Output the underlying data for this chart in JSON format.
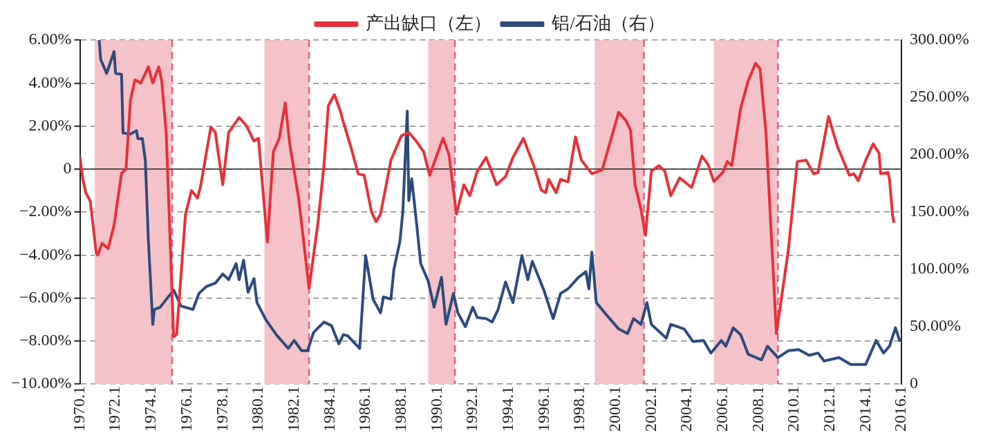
{
  "chart_data": {
    "type": "line",
    "legend": "top",
    "grid": "y",
    "line_style": "solid",
    "marker": "none",
    "xlim": [
      "1970-01",
      "2016-01"
    ],
    "xticks": [
      {
        "value": "1970-01",
        "label": "1970.1"
      },
      {
        "value": "1972-01",
        "label": "1972.1"
      },
      {
        "value": "1974-01",
        "label": "1974.1"
      },
      {
        "value": "1976-01",
        "label": "1976.1"
      },
      {
        "value": "1978-01",
        "label": "1978.1"
      },
      {
        "value": "1980-01",
        "label": "1980.1"
      },
      {
        "value": "1982-01",
        "label": "1982.1"
      },
      {
        "value": "1984-01",
        "label": "1984.1"
      },
      {
        "value": "1986-01",
        "label": "1986.1"
      },
      {
        "value": "1988-01",
        "label": "1988.1"
      },
      {
        "value": "1990-01",
        "label": "1990.1"
      },
      {
        "value": "1992-01",
        "label": "1992.1"
      },
      {
        "value": "1994-01",
        "label": "1994.1"
      },
      {
        "value": "1996-01",
        "label": "1996.1"
      },
      {
        "value": "1998-01",
        "label": "1998.1"
      },
      {
        "value": "2000-01",
        "label": "2000.1"
      },
      {
        "value": "2002-01",
        "label": "2002.1"
      },
      {
        "value": "2004-01",
        "label": "2004.1"
      },
      {
        "value": "2006-01",
        "label": "2006.1"
      },
      {
        "value": "2008-01",
        "label": "2008.1"
      },
      {
        "value": "2010-01",
        "label": "2010.1"
      },
      {
        "value": "2012-01",
        "label": "2012.1"
      },
      {
        "value": "2014-01",
        "label": "2014.1"
      },
      {
        "value": "2016-01",
        "label": "2016.1"
      }
    ],
    "ylim": [
      -10,
      6
    ],
    "yticks": [
      {
        "value": 6,
        "label": "6.00%"
      },
      {
        "value": 4,
        "label": "4.00%"
      },
      {
        "value": 2,
        "label": "2.00%"
      },
      0,
      {
        "value": -2,
        "label": "−2.00%"
      },
      {
        "value": -4,
        "label": "−4.00%"
      },
      {
        "value": -6,
        "label": "−6.00%"
      },
      {
        "value": -8,
        "label": "−8.00%"
      },
      {
        "value": -10,
        "label": "−10.00%"
      }
    ],
    "y2lim": [
      0,
      300
    ],
    "y2ticks": [
      {
        "value": 300,
        "label": "300.00%"
      },
      {
        "value": 250,
        "label": "250.00%"
      },
      {
        "value": 200,
        "label": "200.00%"
      },
      {
        "value": 150,
        "label": "150.00%"
      },
      {
        "value": 100,
        "label": "100.00%"
      },
      {
        "value": 50,
        "label": "50.00%"
      },
      0
    ],
    "bands": [
      {
        "axis": "x",
        "from": "1970-11",
        "to": "1975-03",
        "color": "#f4c2c8"
      },
      {
        "axis": "x",
        "from": "1980-05",
        "to": "1982-11",
        "color": "#f4c2c8"
      },
      {
        "axis": "x",
        "from": "1989-07",
        "to": "1991-01",
        "color": "#f4c2c8"
      },
      {
        "axis": "x",
        "from": "1998-11",
        "to": "2001-08",
        "color": "#f4c2c8"
      },
      {
        "axis": "x",
        "from": "2005-07",
        "to": "2009-02",
        "color": "#f4c2c8"
      }
    ],
    "ref_lines": [
      {
        "axis": "x",
        "value": "1975-03",
        "color": "#e0607e",
        "line_style": "dashed"
      },
      {
        "axis": "x",
        "value": "1982-11",
        "color": "#e0607e",
        "line_style": "dashed"
      },
      {
        "axis": "x",
        "value": "1991-01",
        "color": "#e0607e",
        "line_style": "dashed"
      },
      {
        "axis": "x",
        "value": "2001-08",
        "color": "#e0607e",
        "line_style": "dashed"
      },
      {
        "axis": "x",
        "value": "2009-02",
        "color": "#e0607e",
        "line_style": "dashed"
      },
      {
        "axis": "y",
        "value": 0,
        "color": "#222222",
        "line_style": "solid"
      }
    ],
    "series": [
      {
        "name": "产出缺口（左）",
        "color": "#e8303a",
        "axis": "y",
        "x": [
          "1970-01",
          "1970-03",
          "1970-05",
          "1970-08",
          "1970-12",
          "1971-01",
          "1971-04",
          "1971-08",
          "1971-12",
          "1972-05",
          "1972-08",
          "1972-11",
          "1973-02",
          "1973-06",
          "1973-11",
          "1974-02",
          "1974-06",
          "1974-08",
          "1974-11",
          "1975-04",
          "1975-06",
          "1975-12",
          "1976-04",
          "1976-08",
          "1976-10",
          "1977-05",
          "1977-08",
          "1978-01",
          "1978-05",
          "1978-12",
          "1979-05",
          "1979-10",
          "1980-01",
          "1980-07",
          "1980-11",
          "1981-03",
          "1981-07",
          "1981-10",
          "1982-04",
          "1982-11",
          "1983-05",
          "1983-09",
          "1983-12",
          "1984-04",
          "1984-08",
          "1984-10",
          "1985-03",
          "1985-08",
          "1985-12",
          "1986-05",
          "1986-08",
          "1986-11",
          "1987-06",
          "1988-01",
          "1988-06",
          "1988-11",
          "1989-04",
          "1989-08",
          "1990-05",
          "1990-09",
          "1991-02",
          "1991-07",
          "1991-11",
          "1992-04",
          "1992-10",
          "1993-05",
          "1993-11",
          "1994-04",
          "1994-11",
          "1995-06",
          "1995-11",
          "1996-02",
          "1996-04",
          "1996-09",
          "1996-12",
          "1997-05",
          "1997-10",
          "1998-02",
          "1998-09",
          "1999-04",
          "1999-10",
          "2000-03",
          "2000-08",
          "2000-11",
          "2001-02",
          "2001-06",
          "2001-09",
          "2002-01",
          "2002-06",
          "2002-10",
          "2003-02",
          "2003-08",
          "2004-04",
          "2004-11",
          "2005-03",
          "2005-07",
          "2006-01",
          "2006-04",
          "2006-07",
          "2007-01",
          "2007-06",
          "2007-11",
          "2008-02",
          "2008-06",
          "2009-01",
          "2009-09",
          "2010-03",
          "2010-09",
          "2011-02",
          "2011-05",
          "2011-12",
          "2012-06",
          "2013-02",
          "2013-05",
          "2013-08",
          "2014-01",
          "2014-06",
          "2014-10",
          "2014-11",
          "2015-04",
          "2015-05",
          "2015-07",
          "2015-08"
        ],
        "values": [
          0.55,
          -0.48,
          -1.1,
          -1.5,
          -3.9,
          -4.0,
          -3.45,
          -3.7,
          -2.6,
          -0.2,
          0.0,
          3.2,
          4.15,
          4.0,
          4.75,
          4.0,
          4.75,
          4.1,
          1.7,
          -7.8,
          -7.7,
          -2.1,
          -1.0,
          -1.35,
          -0.85,
          1.95,
          1.7,
          -0.73,
          1.7,
          2.4,
          2.0,
          1.3,
          1.43,
          -3.4,
          0.8,
          1.43,
          3.08,
          1.17,
          -1.36,
          -5.55,
          -2.5,
          0.17,
          2.95,
          3.46,
          2.7,
          2.19,
          1.05,
          -0.22,
          -0.29,
          -2.0,
          -2.45,
          -2.1,
          0.41,
          1.55,
          1.7,
          1.3,
          0.8,
          -0.29,
          1.43,
          0.67,
          -2.1,
          -0.73,
          -1.24,
          -0.1,
          0.54,
          -0.73,
          -0.35,
          0.54,
          1.43,
          0.16,
          -0.98,
          -1.1,
          -0.48,
          -1.1,
          -0.48,
          -0.6,
          1.49,
          0.41,
          -0.22,
          -0.03,
          1.43,
          2.64,
          2.25,
          1.8,
          -0.73,
          -1.87,
          -3.08,
          -0.1,
          0.16,
          -0.1,
          -1.24,
          -0.41,
          -0.86,
          0.6,
          0.22,
          -0.58,
          -0.16,
          0.35,
          0.16,
          2.83,
          4.1,
          4.92,
          4.67,
          1.68,
          -7.65,
          -3.78,
          0.35,
          0.41,
          -0.22,
          -0.16,
          2.45,
          1.05,
          -0.29,
          -0.22,
          -0.54,
          0.41,
          1.17,
          0.73,
          -0.22,
          -0.16,
          -0.48,
          -2.13,
          -2.5
        ]
      },
      {
        "name": "铝/石油（右）",
        "color": "#2e4a7d",
        "axis": "y2",
        "x": [
          "1971-02",
          "1971-03",
          "1971-07",
          "1971-12",
          "1972-01",
          "1972-05",
          "1972-06",
          "1972-11",
          "1973-03",
          "1973-04",
          "1973-07",
          "1973-09",
          "1973-11",
          "1974-02",
          "1974-03",
          "1974-07",
          "1975-04",
          "1975-09",
          "1976-05",
          "1976-09",
          "1977-02",
          "1977-08",
          "1978-01",
          "1978-05",
          "1978-10",
          "1978-12",
          "1979-03",
          "1979-06",
          "1979-10",
          "1979-12",
          "1980-06",
          "1981-01",
          "1981-09",
          "1982-01",
          "1982-06",
          "1982-10",
          "1983-02",
          "1983-09",
          "1984-02",
          "1984-07",
          "1984-10",
          "1985-01",
          "1985-09",
          "1986-01",
          "1986-06",
          "1986-11",
          "1987-01",
          "1987-06",
          "1987-08",
          "1987-12",
          "1988-02",
          "1988-05",
          "1988-06",
          "1988-08",
          "1988-11",
          "1989-02",
          "1989-07",
          "1989-11",
          "1990-04",
          "1990-07",
          "1990-12",
          "1991-03",
          "1991-08",
          "1992-01",
          "1992-04",
          "1992-10",
          "1993-02",
          "1993-06",
          "1993-11",
          "1994-04",
          "1994-10",
          "1995-02",
          "1995-05",
          "1996-01",
          "1996-07",
          "1996-12",
          "1997-05",
          "1997-12",
          "1998-05",
          "1998-07",
          "1998-09",
          "1998-12",
          "1999-07",
          "2000-03",
          "2000-09",
          "2001-01",
          "2001-06",
          "2001-10",
          "2002-01",
          "2002-11",
          "2003-02",
          "2003-11",
          "2004-05",
          "2004-12",
          "2005-05",
          "2005-12",
          "2006-03",
          "2006-08",
          "2007-01",
          "2007-06",
          "2008-03",
          "2008-07",
          "2009-02",
          "2009-09",
          "2010-04",
          "2010-11",
          "2011-05",
          "2011-09",
          "2012-07",
          "2013-03",
          "2014-01",
          "2014-08",
          "2015-01",
          "2015-05",
          "2015-09",
          "2015-12"
        ],
        "values": [
          300,
          283,
          271,
          290,
          271,
          270,
          219,
          218,
          221,
          214,
          214,
          195,
          126,
          52,
          65,
          67,
          82,
          68,
          65,
          79,
          85,
          88,
          96,
          91,
          105,
          91,
          108,
          80,
          92,
          71,
          56,
          43,
          31,
          38,
          29,
          29,
          45,
          54,
          51,
          35,
          43,
          42,
          31,
          112,
          74,
          62,
          76,
          74,
          100,
          124,
          150,
          238,
          160,
          179,
          143,
          105,
          90,
          67,
          93,
          52,
          79,
          62,
          50,
          67,
          58,
          57,
          54,
          65,
          89,
          71,
          112,
          91,
          107,
          81,
          57,
          79,
          83,
          93,
          98,
          83,
          115,
          71,
          60,
          48,
          44,
          57,
          52,
          71,
          52,
          40,
          52,
          48,
          37,
          38,
          27,
          38,
          33,
          49,
          43,
          26,
          21,
          33,
          23,
          29,
          30,
          25,
          27,
          20,
          23,
          17,
          17,
          38,
          27,
          33,
          49,
          37
        ]
      }
    ]
  }
}
